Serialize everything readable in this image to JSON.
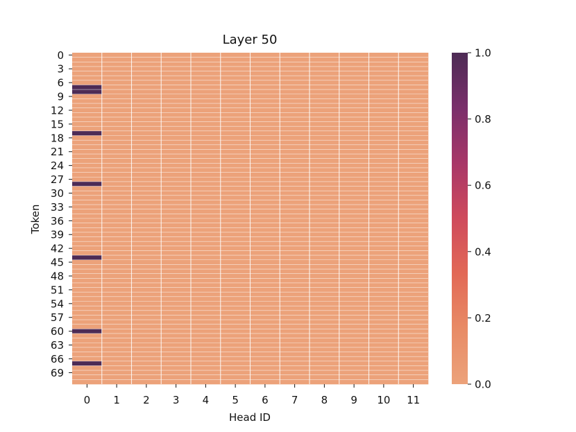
{
  "chart_data": {
    "type": "heatmap",
    "title": "Layer 50",
    "xlabel": "Head ID",
    "ylabel": "Token",
    "x_categories": [
      "0",
      "1",
      "2",
      "3",
      "4",
      "5",
      "6",
      "7",
      "8",
      "9",
      "10",
      "11"
    ],
    "y_tick_labels": [
      "0",
      "3",
      "6",
      "9",
      "12",
      "15",
      "18",
      "21",
      "24",
      "27",
      "30",
      "33",
      "36",
      "39",
      "42",
      "45",
      "48",
      "51",
      "54",
      "57",
      "60",
      "63",
      "66",
      "69"
    ],
    "y_tick_positions": [
      0,
      3,
      6,
      9,
      12,
      15,
      18,
      21,
      24,
      27,
      30,
      33,
      36,
      39,
      42,
      45,
      48,
      51,
      54,
      57,
      60,
      63,
      66,
      69
    ],
    "num_tokens": 72,
    "num_heads": 12,
    "background_value": 0.0,
    "highlight_column": 0,
    "highlights": [
      {
        "token": 7,
        "head": 0,
        "value": 1.0
      },
      {
        "token": 8,
        "head": 0,
        "value": 1.0
      },
      {
        "token": 17,
        "head": 0,
        "value": 1.0
      },
      {
        "token": 28,
        "head": 0,
        "value": 1.0
      },
      {
        "token": 44,
        "head": 0,
        "value": 1.0
      },
      {
        "token": 60,
        "head": 0,
        "value": 1.0
      },
      {
        "token": 67,
        "head": 0,
        "value": 1.0
      }
    ],
    "colorbar": {
      "min": 0.0,
      "max": 1.0,
      "ticks": [
        "0.0",
        "0.2",
        "0.4",
        "0.6",
        "0.8",
        "1.0"
      ],
      "tick_values": [
        0.0,
        0.2,
        0.4,
        0.6,
        0.8,
        1.0
      ],
      "colormap": "flare",
      "color_stops": [
        "#eca27a",
        "#e88b66",
        "#e26956",
        "#cf4a5c",
        "#a83768",
        "#7a2f6b",
        "#4d2b55"
      ]
    },
    "grid_color": "#ffffff"
  }
}
